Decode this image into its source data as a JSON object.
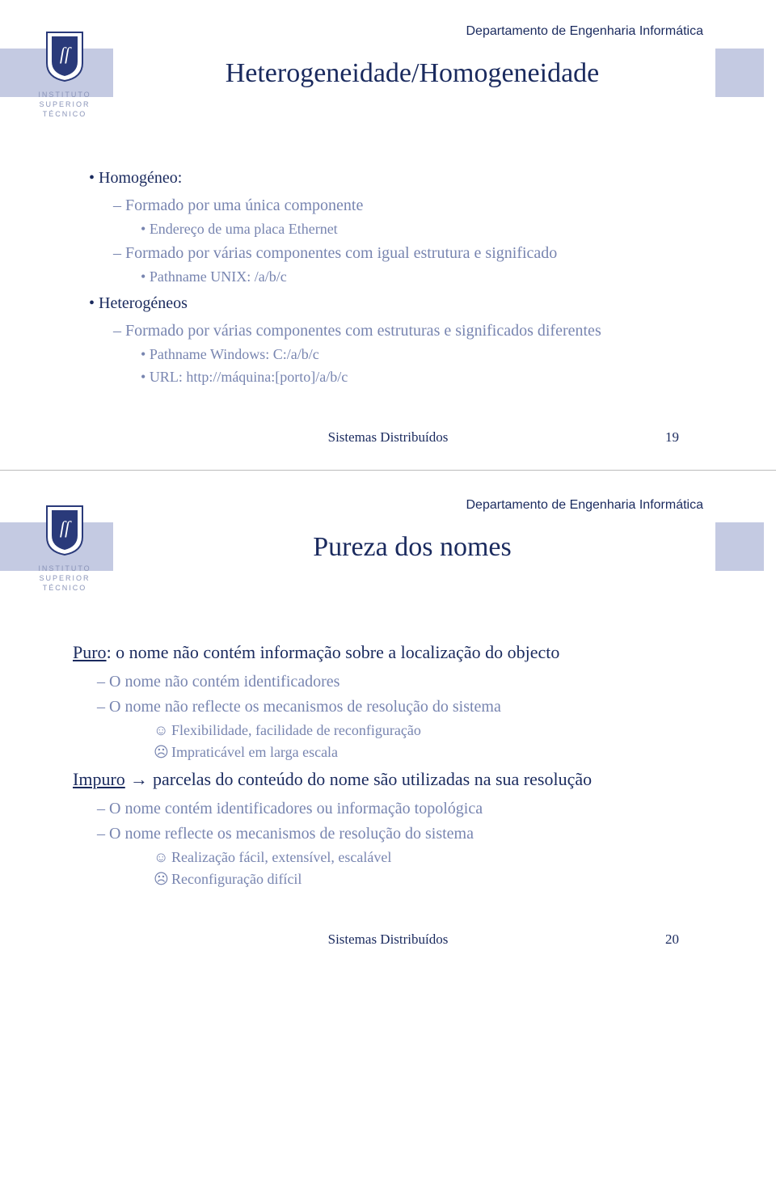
{
  "dept_header": "Departamento de Engenharia Informática",
  "logo_lines": [
    "INSTITUTO",
    "SUPERIOR",
    "TÉCNICO"
  ],
  "footer_text": "Sistemas Distribuídos",
  "slide1": {
    "title": "Heterogeneidade/Homogeneidade",
    "page_number": "19",
    "items": {
      "h1": "Homogéneo:",
      "h1_s1": "Formado por uma única componente",
      "h1_s1_a": "Endereço de uma placa Ethernet",
      "h1_s2": "Formado por várias componentes com igual estrutura e significado",
      "h1_s2_a": "Pathname UNIX: /a/b/c",
      "h2": "Heterogéneos",
      "h2_s1": "Formado por várias componentes com estruturas e significados diferentes",
      "h2_s1_a": "Pathname Windows: C:/a/b/c",
      "h2_s1_b": "URL: http://máquina:[porto]/a/b/c"
    }
  },
  "slide2": {
    "title": "Pureza dos nomes",
    "page_number": "20",
    "items": {
      "p1_label": "Puro",
      "p1_rest": ": o nome não contém informação sobre a localização do objecto",
      "p1_s1": "O nome não contém identificadores",
      "p1_s2": "O nome não reflecte os mecanismos de resolução do sistema",
      "p1_s2_a": "Flexibilidade, facilidade de reconfiguração",
      "p1_s2_b": "Impraticável em larga escala",
      "p2_label": "Impuro",
      "p2_arrow": " → ",
      "p2_rest": "parcelas do conteúdo do nome são utilizadas na sua resolução",
      "p2_s1": "O nome contém identificadores ou informação topológica",
      "p2_s2": "O nome reflecte os mecanismos de resolução do sistema",
      "p2_s2_a": "Realização fácil, extensível, escalável",
      "p2_s2_b": "Reconfiguração difícil"
    }
  },
  "symbols": {
    "happy": "☺",
    "sad": "☹"
  }
}
